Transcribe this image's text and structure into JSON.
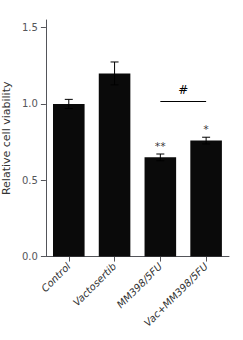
{
  "chart_data": {
    "type": "bar",
    "categories": [
      "Control",
      "Vactosertib",
      "MM398/5FU",
      "Vac+MM398/5FU"
    ],
    "values": [
      1.0,
      1.2,
      0.65,
      0.76
    ],
    "errors": [
      0.03,
      0.075,
      0.022,
      0.022
    ],
    "color": "#0a0a0a",
    "ylabel": "Relative cell viability",
    "ylim": [
      0,
      1.55
    ],
    "yticks": [
      {
        "value": 0,
        "label": "0.0"
      },
      0.5,
      {
        "value": 1,
        "label": "1.0"
      },
      1.5
    ],
    "grid": false,
    "annotations": [
      {
        "text": "**",
        "category": "MM398/5FU"
      },
      {
        "text": "*",
        "category": "Vac+MM398/5FU"
      }
    ],
    "bracket": {
      "from": "MM398/5FU",
      "to": "Vac+MM398/5FU",
      "y": 1.02,
      "label": "#"
    }
  }
}
